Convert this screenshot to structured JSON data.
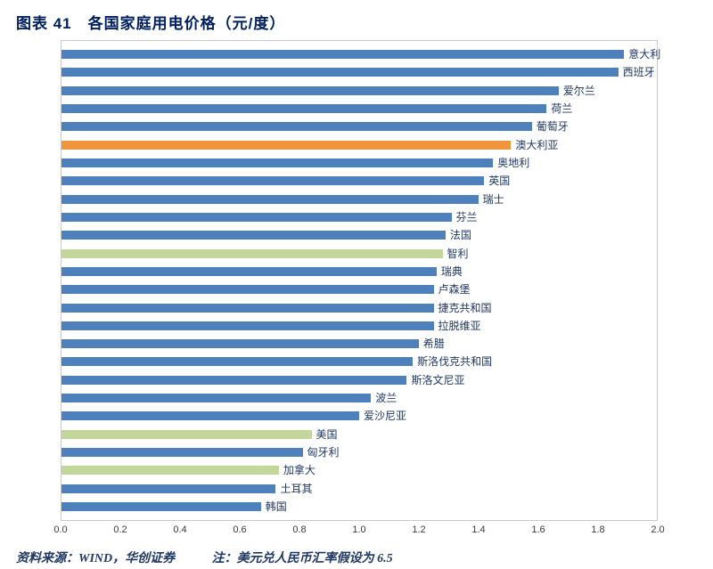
{
  "title": "图表 41　各国家庭用电价格（元/度）",
  "footer": {
    "source": "资料来源：WIND，华创证券",
    "note": "注：美元兑人民币汇率假设为 6.5"
  },
  "colors": {
    "bar_default": "#4e80bc",
    "bar_highlight_orange": "#f0953e",
    "bar_highlight_green": "#c4d79b",
    "label_text": "#1f3864",
    "title_text": "#002060",
    "plot_border": "#c9c9c9"
  },
  "chart_data": {
    "type": "bar",
    "orientation": "horizontal",
    "title": "各国家庭用电价格（元/度）",
    "xlabel": "",
    "ylabel": "",
    "xlim": [
      0,
      2.0
    ],
    "x_ticks": [
      "0.0",
      "0.2",
      "0.4",
      "0.6",
      "0.8",
      "1.0",
      "1.2",
      "1.4",
      "1.6",
      "1.8",
      "2.0"
    ],
    "grid": false,
    "legend": false,
    "categories": [
      "意大利",
      "西班牙",
      "爱尔兰",
      "荷兰",
      "葡萄牙",
      "澳大利亚",
      "奥地利",
      "英国",
      "瑞士",
      "芬兰",
      "法国",
      "智利",
      "瑞典",
      "卢森堡",
      "捷克共和国",
      "拉脱维亚",
      "希腊",
      "斯洛伐克共和国",
      "斯洛文尼亚",
      "波兰",
      "爱沙尼亚",
      "美国",
      "匈牙利",
      "加拿大",
      "土耳其",
      "韩国"
    ],
    "values": [
      1.89,
      1.87,
      1.67,
      1.63,
      1.58,
      1.51,
      1.45,
      1.42,
      1.4,
      1.31,
      1.29,
      1.28,
      1.26,
      1.25,
      1.25,
      1.25,
      1.2,
      1.18,
      1.16,
      1.04,
      1.0,
      0.84,
      0.81,
      0.73,
      0.72,
      0.67
    ],
    "bar_colors": [
      "#4e80bc",
      "#4e80bc",
      "#4e80bc",
      "#4e80bc",
      "#4e80bc",
      "#f0953e",
      "#4e80bc",
      "#4e80bc",
      "#4e80bc",
      "#4e80bc",
      "#4e80bc",
      "#c4d79b",
      "#4e80bc",
      "#4e80bc",
      "#4e80bc",
      "#4e80bc",
      "#4e80bc",
      "#4e80bc",
      "#4e80bc",
      "#4e80bc",
      "#4e80bc",
      "#c4d79b",
      "#4e80bc",
      "#c4d79b",
      "#4e80bc",
      "#4e80bc"
    ]
  }
}
